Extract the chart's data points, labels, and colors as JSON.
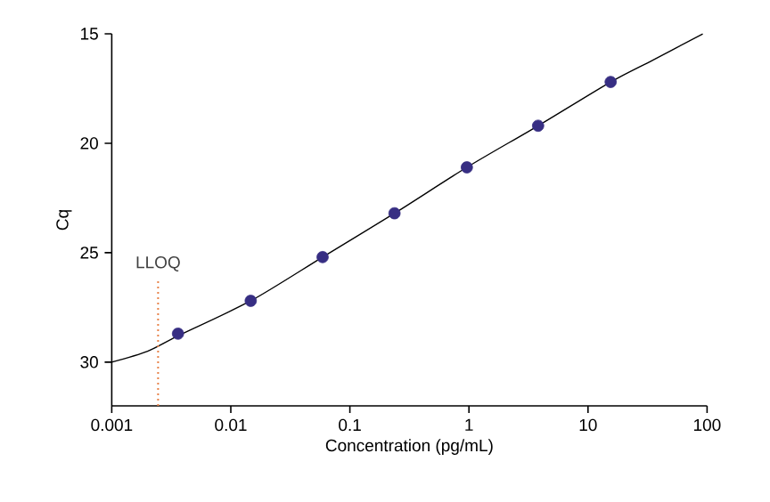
{
  "chart_data": {
    "type": "scatter",
    "xlabel": "Concentration  (pg/mL)",
    "ylabel": "Cq",
    "log": "x",
    "xlim": [
      0.001,
      100
    ],
    "xticks": [
      0.001,
      0.01,
      0.1,
      1,
      10,
      100
    ],
    "ylim": [
      32,
      15
    ],
    "yticks": [
      15,
      20,
      25,
      30
    ],
    "series": [
      {
        "type": "line",
        "marker": "none",
        "color": "#000000",
        "x": [
          0.001,
          0.002,
          0.0036,
          0.0147,
          0.059,
          0.237,
          0.96,
          3.81,
          15.5,
          35,
          92
        ],
        "values": [
          30.0,
          29.5,
          28.8,
          27.2,
          25.2,
          23.2,
          21.1,
          19.2,
          17.2,
          16.2,
          15.0
        ]
      },
      {
        "marker": "circle",
        "color": "#372e83",
        "x": [
          0.0036,
          0.0147,
          0.059,
          0.237,
          0.96,
          3.81,
          15.5
        ],
        "values": [
          28.7,
          27.2,
          25.2,
          23.2,
          21.1,
          19.2,
          17.2
        ]
      }
    ],
    "ref_lines": [
      {
        "axis": "x",
        "value": 0.00245,
        "label": "LLOQ",
        "color": "#e8834a",
        "line_style": "dotted"
      }
    ]
  }
}
